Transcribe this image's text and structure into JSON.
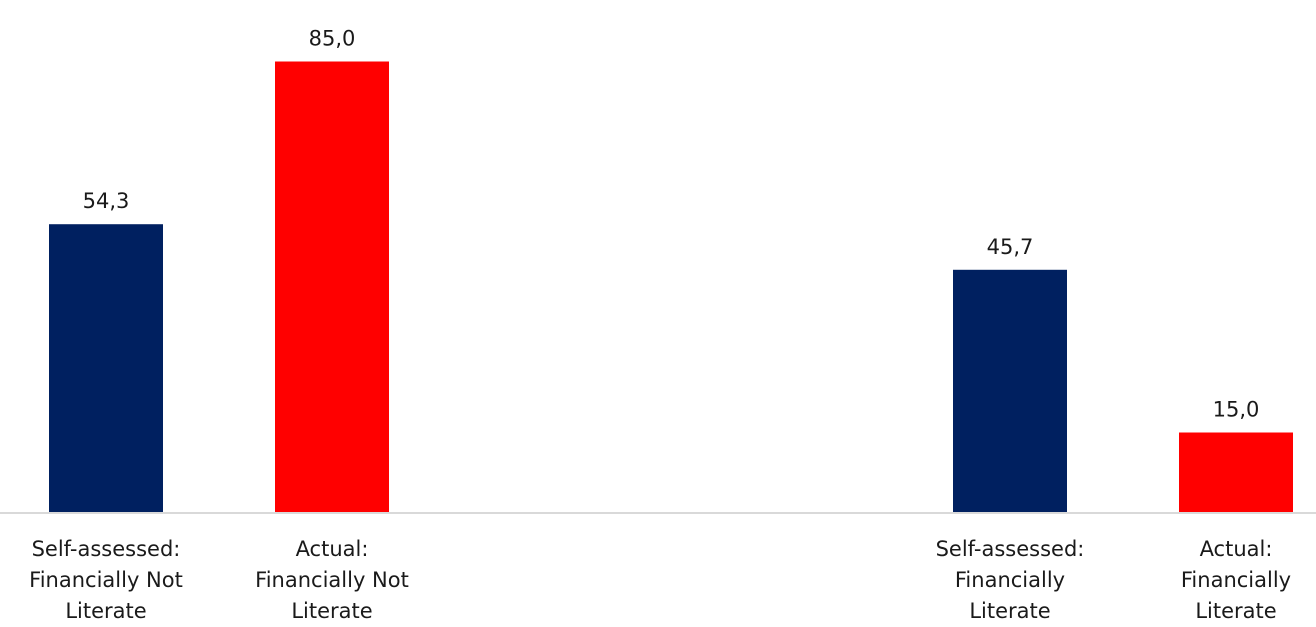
{
  "chart_data": {
    "type": "bar",
    "categories": [
      "Self-assessed: Financially Not Literate",
      "Actual: Financially Not Literate",
      "Self-assessed: Financially Literate",
      "Actual: Financially Literate"
    ],
    "category_lines": [
      [
        "Self-assessed:",
        "Financially Not",
        "Literate"
      ],
      [
        "Actual:",
        "Financially Not",
        "Literate"
      ],
      [
        "Self-assessed:",
        "Financially",
        "Literate"
      ],
      [
        "Actual:",
        "Financially",
        "Literate"
      ]
    ],
    "values": [
      54.3,
      85.0,
      45.7,
      15.0
    ],
    "value_labels": [
      "54,3",
      "85,0",
      "45,7",
      "15,0"
    ],
    "colors": [
      "#002060",
      "#ff0000",
      "#002060",
      "#ff0000"
    ],
    "ylim": [
      0,
      100
    ],
    "grid": false,
    "title": "",
    "xlabel": "",
    "ylabel": ""
  }
}
